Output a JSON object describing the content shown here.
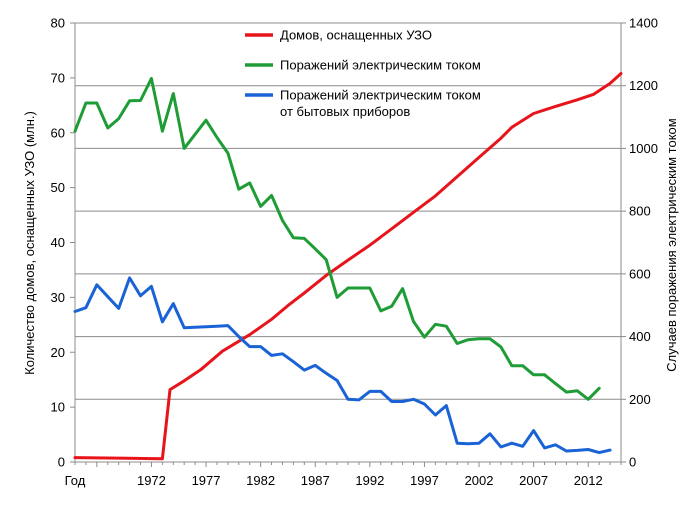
{
  "chart_data": {
    "type": "line",
    "left_axis": {
      "label": "Количество домов, оснащенных УЗО (млн.)",
      "ylim": [
        0,
        80
      ],
      "ticks": [
        0,
        10,
        20,
        30,
        40,
        50,
        60,
        70,
        80
      ]
    },
    "right_axis": {
      "label": "Случаев поражения электрическим током",
      "ylim": [
        0,
        1400
      ],
      "ticks": [
        0,
        200,
        400,
        600,
        800,
        1000,
        1200,
        1400
      ]
    },
    "x_axis": {
      "xlim": [
        1965,
        2015
      ],
      "tick_labels": [
        {
          "x": 1965,
          "text": "Год"
        },
        {
          "x": 1972,
          "text": "1972"
        },
        {
          "x": 1977,
          "text": "1977"
        },
        {
          "x": 1982,
          "text": "1982"
        },
        {
          "x": 1987,
          "text": "1987"
        },
        {
          "x": 1992,
          "text": "1992"
        },
        {
          "x": 1997,
          "text": "1997"
        },
        {
          "x": 2002,
          "text": "2002"
        },
        {
          "x": 2007,
          "text": "2007"
        },
        {
          "x": 2012,
          "text": "2012"
        }
      ]
    },
    "grid": "horizontal, right axis",
    "legend_position": "top-center",
    "series": [
      {
        "name": "Домов, оснащенных УЗО",
        "color": "#e8141c",
        "axis": "left",
        "points": [
          [
            1965,
            0.8
          ],
          [
            1973,
            0.6
          ],
          [
            1973.7,
            13.2
          ],
          [
            1975,
            14.8
          ],
          [
            1976.5,
            16.8
          ],
          [
            1978.5,
            20.2
          ],
          [
            1981,
            23.2
          ],
          [
            1983,
            26
          ],
          [
            1984.5,
            28.5
          ],
          [
            1986,
            30.8
          ],
          [
            1988,
            34
          ],
          [
            1990,
            36.8
          ],
          [
            1992,
            39.5
          ],
          [
            1994,
            42.5
          ],
          [
            1996,
            45.5
          ],
          [
            1998,
            48.5
          ],
          [
            2000,
            52
          ],
          [
            2002,
            55.5
          ],
          [
            2004,
            59
          ],
          [
            2005,
            61
          ],
          [
            2007,
            63.5
          ],
          [
            2009,
            64.8
          ],
          [
            2011,
            66
          ],
          [
            2012.5,
            67
          ],
          [
            2014,
            69
          ],
          [
            2015,
            70.8
          ]
        ]
      },
      {
        "name": "Поражений электрическим током",
        "color": "#1e9c36",
        "axis": "right",
        "points": [
          [
            1965,
            1055
          ],
          [
            1966,
            1145
          ],
          [
            1967,
            1145
          ],
          [
            1968,
            1065
          ],
          [
            1969,
            1095
          ],
          [
            1970,
            1152
          ],
          [
            1971,
            1153
          ],
          [
            1972,
            1223
          ],
          [
            1973,
            1055
          ],
          [
            1974,
            1175
          ],
          [
            1975,
            1000
          ],
          [
            1976,
            1045
          ],
          [
            1977,
            1090
          ],
          [
            1978,
            1035
          ],
          [
            1979,
            985
          ],
          [
            1980,
            870
          ],
          [
            1981,
            890
          ],
          [
            1982,
            815
          ],
          [
            1983,
            850
          ],
          [
            1984,
            770
          ],
          [
            1985,
            715
          ],
          [
            1986,
            713
          ],
          [
            1987,
            680
          ],
          [
            1988,
            645
          ],
          [
            1989,
            525
          ],
          [
            1990,
            555
          ],
          [
            1991,
            555
          ],
          [
            1992,
            555
          ],
          [
            1993,
            482
          ],
          [
            1994,
            497
          ],
          [
            1995,
            553
          ],
          [
            1996,
            448
          ],
          [
            1997,
            398
          ],
          [
            1998,
            439
          ],
          [
            1999,
            433
          ],
          [
            2000,
            378
          ],
          [
            2001,
            390
          ],
          [
            2002,
            393
          ],
          [
            2003,
            393
          ],
          [
            2004,
            367
          ],
          [
            2005,
            307
          ],
          [
            2006,
            307
          ],
          [
            2007,
            278
          ],
          [
            2008,
            278
          ],
          [
            2009,
            250
          ],
          [
            2010,
            223
          ],
          [
            2011,
            227
          ],
          [
            2012,
            200
          ],
          [
            2013,
            235
          ]
        ]
      },
      {
        "name": "Поражений электрическим током от бытовых приборов",
        "color": "#1a63d6",
        "axis": "right",
        "points": [
          [
            1965,
            480
          ],
          [
            1966,
            492
          ],
          [
            1967,
            565
          ],
          [
            1968,
            527
          ],
          [
            1969,
            490
          ],
          [
            1970,
            587
          ],
          [
            1971,
            530
          ],
          [
            1972,
            560
          ],
          [
            1973,
            447
          ],
          [
            1974,
            505
          ],
          [
            1975,
            428
          ],
          [
            1978,
            433
          ],
          [
            1979,
            435
          ],
          [
            1980,
            400
          ],
          [
            1981,
            368
          ],
          [
            1982,
            368
          ],
          [
            1983,
            340
          ],
          [
            1984,
            345
          ],
          [
            1985,
            320
          ],
          [
            1986,
            293
          ],
          [
            1987,
            308
          ],
          [
            1988,
            283
          ],
          [
            1989,
            260
          ],
          [
            1990,
            200
          ],
          [
            1991,
            198
          ],
          [
            1992,
            225
          ],
          [
            1993,
            225
          ],
          [
            1994,
            193
          ],
          [
            1995,
            193
          ],
          [
            1996,
            200
          ],
          [
            1997,
            185
          ],
          [
            1998,
            150
          ],
          [
            1999,
            180
          ],
          [
            2000,
            60
          ],
          [
            2001,
            58
          ],
          [
            2002,
            60
          ],
          [
            2003,
            90
          ],
          [
            2004,
            48
          ],
          [
            2005,
            60
          ],
          [
            2006,
            50
          ],
          [
            2007,
            100
          ],
          [
            2008,
            45
          ],
          [
            2009,
            55
          ],
          [
            2010,
            35
          ],
          [
            2011,
            37
          ],
          [
            2012,
            40
          ],
          [
            2013,
            30
          ],
          [
            2014,
            38
          ]
        ]
      }
    ],
    "legend": [
      {
        "text": "Домов, оснащенных УЗО",
        "color": "#e8141c"
      },
      {
        "text": "Поражений электрическим током",
        "color": "#1e9c36"
      },
      {
        "text": "Поражений электрическим током",
        "text2": "от бытовых приборов",
        "color": "#1a63d6"
      }
    ]
  }
}
